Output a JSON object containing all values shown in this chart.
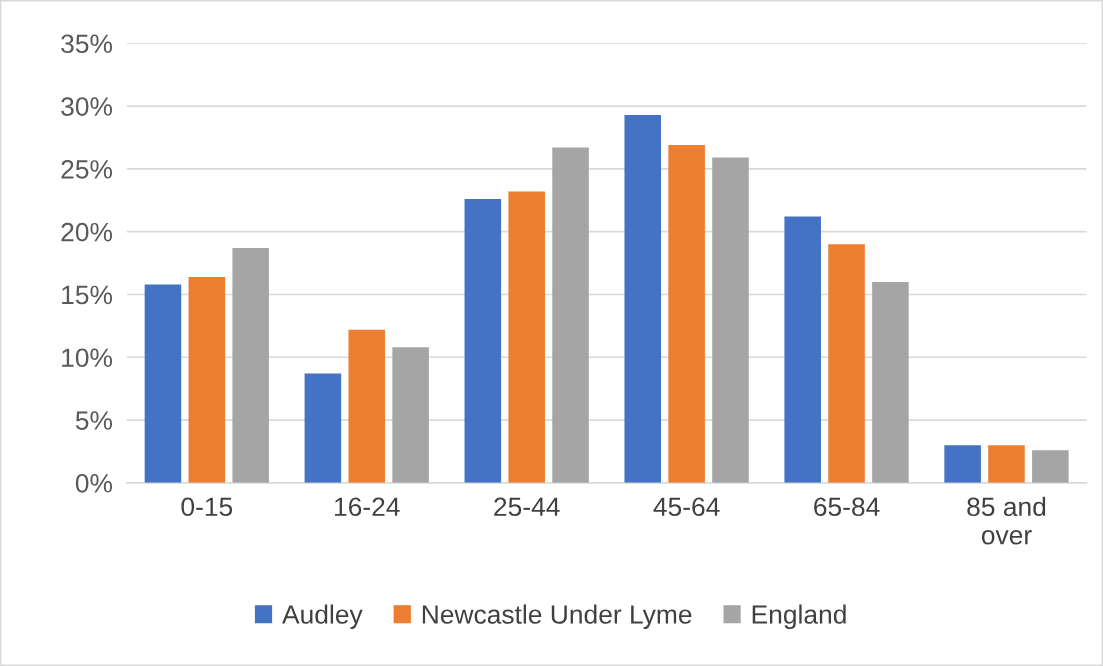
{
  "chart_data": {
    "type": "bar",
    "categories": [
      "0-15",
      "16-24",
      "25-44",
      "45-64",
      "65-84",
      "85 and\nover"
    ],
    "series": [
      {
        "name": "Audley",
        "color": "#4472c4",
        "values": [
          15.8,
          8.7,
          22.6,
          29.3,
          21.2,
          3.0
        ]
      },
      {
        "name": "Newcastle Under Lyme",
        "color": "#ed7d31",
        "values": [
          16.4,
          12.2,
          23.2,
          26.9,
          19.0,
          3.0
        ]
      },
      {
        "name": "England",
        "color": "#a5a5a5",
        "values": [
          18.7,
          10.8,
          26.7,
          25.9,
          16.0,
          2.6
        ]
      }
    ],
    "ylim": [
      0,
      35
    ],
    "yticks": [
      {
        "value": 0,
        "label": "0%"
      },
      {
        "value": 5,
        "label": "5%"
      },
      {
        "value": 10,
        "label": "10%"
      },
      {
        "value": 15,
        "label": "15%"
      },
      {
        "value": 20,
        "label": "20%"
      },
      {
        "value": 25,
        "label": "25%"
      },
      {
        "value": 30,
        "label": "30%"
      },
      {
        "value": 35,
        "label": "35%"
      }
    ],
    "grid": "y",
    "legend": "bottom"
  }
}
